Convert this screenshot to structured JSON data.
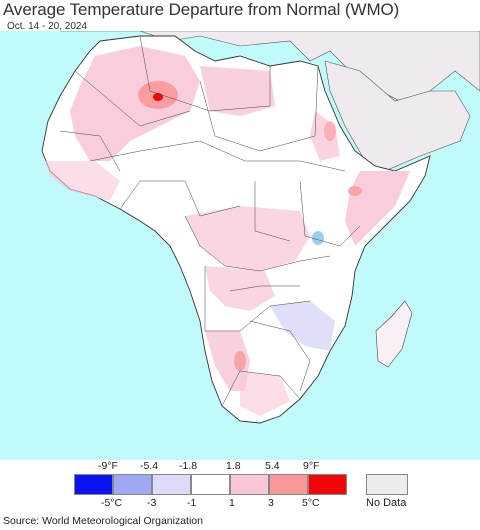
{
  "title": "Average Temperature Departure from Normal (WMO)",
  "date_range": "Oct. 14 - 20, 2024",
  "legend": {
    "f_labels": [
      "-9°F",
      "-5.4",
      "-1.8",
      "1.8",
      "5.4",
      "9°F"
    ],
    "c_labels": [
      "-5°C",
      "-3",
      "-1",
      "1",
      "3",
      "5°C"
    ],
    "colors": [
      "#0a14f0",
      "#a0a8f4",
      "#dcdcfa",
      "#ffffff",
      "#f8c8d8",
      "#f89898",
      "#f00808"
    ],
    "nodata_label": "No Data",
    "nodata_color": "#eeeaee"
  },
  "map": {
    "ocean_color": "#c0fafa",
    "nodata_land_color": "#eeeaee",
    "land_color": "#ffffff",
    "warm_light_color": "#f8c8d8",
    "warm_color": "#f89898",
    "hot_color": "#f00808",
    "cool_color": "#dcdcfa"
  },
  "source": "Source: World Meteorological Organization"
}
